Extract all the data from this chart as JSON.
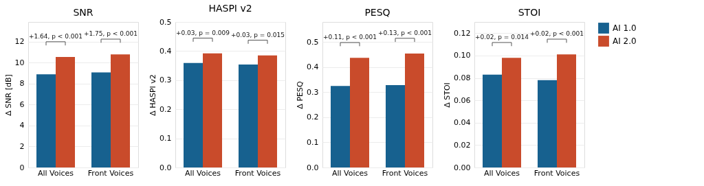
{
  "chart_data": [
    {
      "type": "bar",
      "title": "SNR",
      "ylabel": "Δ SNR [dB]",
      "categories": [
        "All Voices",
        "Front Voices"
      ],
      "ylim": [
        0,
        13.9
      ],
      "yticks": [
        0,
        2,
        4,
        6,
        8,
        10,
        12
      ],
      "grid": "y",
      "legend": "right",
      "series": [
        {
          "name": "AI 1.0",
          "color": "#17618f",
          "values": [
            8.9,
            9.08
          ]
        },
        {
          "name": "AI 2.0",
          "color": "#c94b2b",
          "values": [
            10.55,
            10.8
          ]
        }
      ],
      "annotations": [
        "+1.64, p < 0.001",
        "+1.75, p < 0.001"
      ]
    },
    {
      "type": "bar",
      "title": "HASPI v2",
      "ylabel": "Δ HASPI v2",
      "categories": [
        "All Voices",
        "Front Voices"
      ],
      "ylim": [
        0,
        0.5
      ],
      "yticks": [
        {
          "value": 0,
          "label": "0.0"
        },
        0.1,
        0.2,
        0.3,
        0.4,
        {
          "value": 0.5,
          "label": "0.5"
        }
      ],
      "grid": "y",
      "legend": "right",
      "series": [
        {
          "name": "AI 1.0",
          "color": "#17618f",
          "values": [
            0.359,
            0.354
          ]
        },
        {
          "name": "AI 2.0",
          "color": "#c94b2b",
          "values": [
            0.392,
            0.385
          ]
        }
      ],
      "annotations": [
        "+0.03, p = 0.009",
        "+0.03, p = 0.015"
      ]
    },
    {
      "type": "bar",
      "title": "PESQ",
      "ylabel": "Δ PESQ",
      "categories": [
        "All Voices",
        "Front Voices"
      ],
      "ylim": [
        0,
        0.58
      ],
      "yticks": [
        {
          "value": 0,
          "label": "0.0"
        },
        0.1,
        0.2,
        0.3,
        0.4,
        0.5
      ],
      "grid": "y",
      "legend": "right",
      "series": [
        {
          "name": "AI 1.0",
          "color": "#17618f",
          "values": [
            0.325,
            0.328
          ]
        },
        {
          "name": "AI 2.0",
          "color": "#c94b2b",
          "values": [
            0.437,
            0.454
          ]
        }
      ],
      "annotations": [
        "+0.11, p < 0.001",
        "+0.13, p < 0.001"
      ]
    },
    {
      "type": "bar",
      "title": "STOI",
      "ylabel": "Δ STOI",
      "categories": [
        "All Voices",
        "Front Voices"
      ],
      "ylim": [
        0,
        0.13
      ],
      "yticks": [
        {
          "value": 0,
          "label": "0.00"
        },
        {
          "value": 0.02,
          "label": "0.02"
        },
        {
          "value": 0.04,
          "label": "0.04"
        },
        {
          "value": 0.06,
          "label": "0.06"
        },
        {
          "value": 0.08,
          "label": "0.08"
        },
        {
          "value": 0.1,
          "label": "0.10"
        },
        {
          "value": 0.12,
          "label": "0.12"
        }
      ],
      "grid": "y",
      "legend": "right",
      "series": [
        {
          "name": "AI 1.0",
          "color": "#17618f",
          "values": [
            0.083,
            0.078
          ]
        },
        {
          "name": "AI 2.0",
          "color": "#c94b2b",
          "values": [
            0.098,
            0.101
          ]
        }
      ],
      "annotations": [
        "+0.02, p = 0.014",
        "+0.02, p < 0.001"
      ]
    }
  ]
}
